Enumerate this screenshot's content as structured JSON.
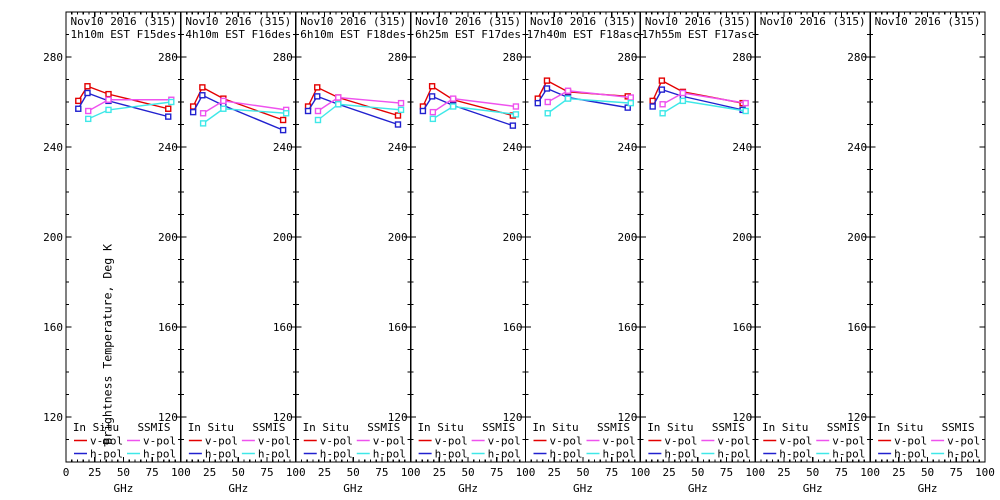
{
  "figure": {
    "background": "#ffffff",
    "axis_color": "#000000"
  },
  "chart_data": {
    "type": "line",
    "title": "Nov10 2016 (315)",
    "xlabel": "GHz",
    "ylabel": "Brightness Temperature, Deg K",
    "xlim": [
      0,
      100
    ],
    "ylim": [
      100,
      300
    ],
    "xticks": [
      0,
      25,
      50,
      75,
      100
    ],
    "yticks": [
      120,
      160,
      200,
      240,
      280
    ],
    "x_minor_step": 5,
    "y_minor_step": 10,
    "grid": "off",
    "legend_position": "bottom-inside-each-panel",
    "legend": {
      "group1": "In Situ",
      "group2": "SSMIS",
      "vpol": "v-pol",
      "hpol": "h-pol"
    },
    "series_colors": {
      "insitu_v": "#e30000",
      "insitu_h": "#2121cf",
      "ssmis_v": "#ee52ee",
      "ssmis_h": "#3fe8e8"
    },
    "insitu_freqs_ghz": [
      10.7,
      18.7,
      37,
      89
    ],
    "ssmis_freqs_ghz": [
      19.35,
      37,
      91.655
    ],
    "series_names": [
      "In Situ v-pol",
      "In Situ h-pol",
      "SSMIS v-pol",
      "SSMIS h-pol"
    ],
    "panels": [
      {
        "subtitle": "1h10m EST F15des",
        "insitu_v": [
          260.5,
          267.0,
          263.5,
          257.0
        ],
        "insitu_h": [
          257.0,
          264.0,
          260.5,
          253.5
        ],
        "ssmis_v": [
          256.0,
          261.0,
          261.0
        ],
        "ssmis_h": [
          252.5,
          256.5,
          260.0
        ]
      },
      {
        "subtitle": "4h10m EST F16des",
        "insitu_v": [
          258.0,
          266.5,
          261.5,
          252.0
        ],
        "insitu_h": [
          255.5,
          263.0,
          258.5,
          247.5
        ],
        "ssmis_v": [
          255.0,
          260.5,
          256.5
        ],
        "ssmis_h": [
          250.5,
          257.0,
          255.0
        ]
      },
      {
        "subtitle": "6h10m EST F18des",
        "insitu_v": [
          258.0,
          266.5,
          262.0,
          254.0
        ],
        "insitu_h": [
          256.0,
          262.5,
          259.0,
          250.0
        ],
        "ssmis_v": [
          256.0,
          262.0,
          259.5
        ],
        "ssmis_h": [
          252.0,
          259.0,
          256.5
        ]
      },
      {
        "subtitle": "6h25m EST F17des",
        "insitu_v": [
          258.0,
          267.0,
          261.0,
          254.0
        ],
        "insitu_h": [
          256.0,
          262.5,
          258.5,
          249.5
        ],
        "ssmis_v": [
          255.5,
          261.5,
          258.0
        ],
        "ssmis_h": [
          252.5,
          258.0,
          254.5
        ]
      },
      {
        "subtitle": "17h40m EST F18asc",
        "insitu_v": [
          261.5,
          269.5,
          264.5,
          262.5
        ],
        "insitu_h": [
          259.5,
          266.0,
          262.0,
          257.5
        ],
        "ssmis_v": [
          260.0,
          265.0,
          262.0
        ],
        "ssmis_h": [
          255.0,
          261.5,
          259.5
        ]
      },
      {
        "subtitle": "17h55m EST F17asc",
        "insitu_v": [
          260.5,
          269.5,
          264.5,
          259.5
        ],
        "insitu_h": [
          258.0,
          265.5,
          262.5,
          256.5
        ],
        "ssmis_v": [
          259.0,
          264.0,
          259.5
        ],
        "ssmis_h": [
          255.0,
          260.5,
          256.0
        ]
      },
      {
        "subtitle": "",
        "insitu_v": [],
        "insitu_h": [],
        "ssmis_v": [],
        "ssmis_h": []
      },
      {
        "subtitle": "",
        "insitu_v": [],
        "insitu_h": [],
        "ssmis_v": [],
        "ssmis_h": []
      }
    ]
  }
}
